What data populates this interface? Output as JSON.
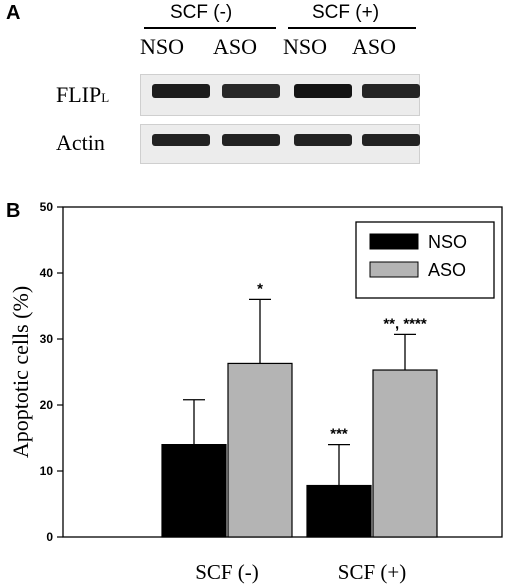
{
  "panel_a": {
    "letter": "A",
    "conditions": [
      "SCF (-)",
      "SCF (+)"
    ],
    "lanes": [
      "NSO",
      "ASO",
      "NSO",
      "ASO"
    ],
    "rows": [
      {
        "label_main": "FLIP",
        "label_sub": "L",
        "band_intensity": [
          0.9,
          0.78,
          1.0,
          0.82
        ]
      },
      {
        "label_main": "Actin",
        "label_sub": "",
        "band_intensity": [
          0.85,
          0.85,
          0.85,
          0.85
        ]
      }
    ]
  },
  "panel_b": {
    "letter": "B"
  },
  "chart_data": {
    "type": "bar",
    "categories": [
      "SCF (-)",
      "SCF (+)"
    ],
    "series": [
      {
        "name": "NSO",
        "color": "#000000",
        "values": [
          14,
          7.8
        ],
        "errors": [
          6.8,
          6.2
        ],
        "annotations": [
          "",
          "***"
        ]
      },
      {
        "name": "ASO",
        "color": "#b4b4b4",
        "values": [
          26.3,
          25.3
        ],
        "errors": [
          9.7,
          5.4
        ],
        "annotations": [
          "*",
          "**, ****"
        ]
      }
    ],
    "ylabel": "Apoptotic cells (%)",
    "xlabel": "",
    "ylim": [
      0,
      50
    ],
    "yticks": [
      0,
      10,
      20,
      30,
      40,
      50
    ],
    "legend_position": "top-right",
    "grid": false
  }
}
